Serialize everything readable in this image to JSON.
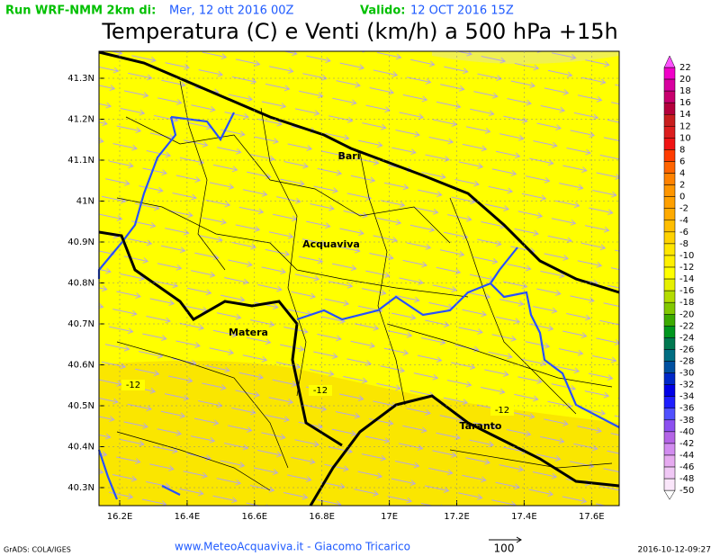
{
  "header": {
    "run_label": "Run WRF-NMM 2km di:",
    "run_date": "Mer, 12 ott 2016 00Z",
    "valid_label": "Valido:",
    "valid_date": "12 OCT 2016 15Z"
  },
  "title": "Temperatura (C) e Venti (km/h) a 500 hPa +15h",
  "map": {
    "lat_labels": [
      "41.3N",
      "41.2N",
      "41.1N",
      "41N",
      "40.9N",
      "40.8N",
      "40.7N",
      "40.6N",
      "40.5N",
      "40.4N",
      "40.3N"
    ],
    "lon_labels": [
      "16.2E",
      "16.4E",
      "16.6E",
      "16.8E",
      "17E",
      "17.2E",
      "17.4E",
      "17.6E"
    ],
    "places": [
      "Bari",
      "Acquaviva",
      "Matera",
      "Taranto"
    ],
    "contour_labels": [
      "-12",
      "-12",
      "-12"
    ]
  },
  "colorbar": {
    "labels": [
      22,
      20,
      18,
      16,
      14,
      12,
      10,
      8,
      6,
      4,
      2,
      0,
      -2,
      -4,
      -6,
      -8,
      -10,
      -12,
      -14,
      -16,
      -18,
      -20,
      -22,
      -24,
      -26,
      -28,
      -30,
      -32,
      -34,
      -36,
      -38,
      -40,
      -42,
      -44,
      -46,
      -48,
      -50
    ],
    "colors": [
      "#f000c8",
      "#d800a0",
      "#c8006e",
      "#b4003c",
      "#c81e1e",
      "#dc1e1e",
      "#f01414",
      "#ff3c00",
      "#ff6400",
      "#ff8200",
      "#ff9600",
      "#ffa000",
      "#ffaa00",
      "#ffbe00",
      "#ffd200",
      "#ffe600",
      "#fff000",
      "#ffff00",
      "#e6f000",
      "#b4dc00",
      "#82c800",
      "#3caa00",
      "#00961e",
      "#007850",
      "#006e82",
      "#0050a0",
      "#0028c8",
      "#0000e6",
      "#1e1eff",
      "#5050ff",
      "#8c50f0",
      "#b464e6",
      "#d28cf0",
      "#e6aaf0",
      "#f0c8f5",
      "#fae6fa"
    ],
    "top_color": "#ff50ff",
    "bottom_color": "#ffffff"
  },
  "footer": {
    "software": "GrADS: COLA/IGES",
    "credit": "www.MeteoAcquaviva.it - Giacomo Tricarico",
    "vector_scale": "100",
    "timestamp": "2016-10-12-09:27"
  }
}
